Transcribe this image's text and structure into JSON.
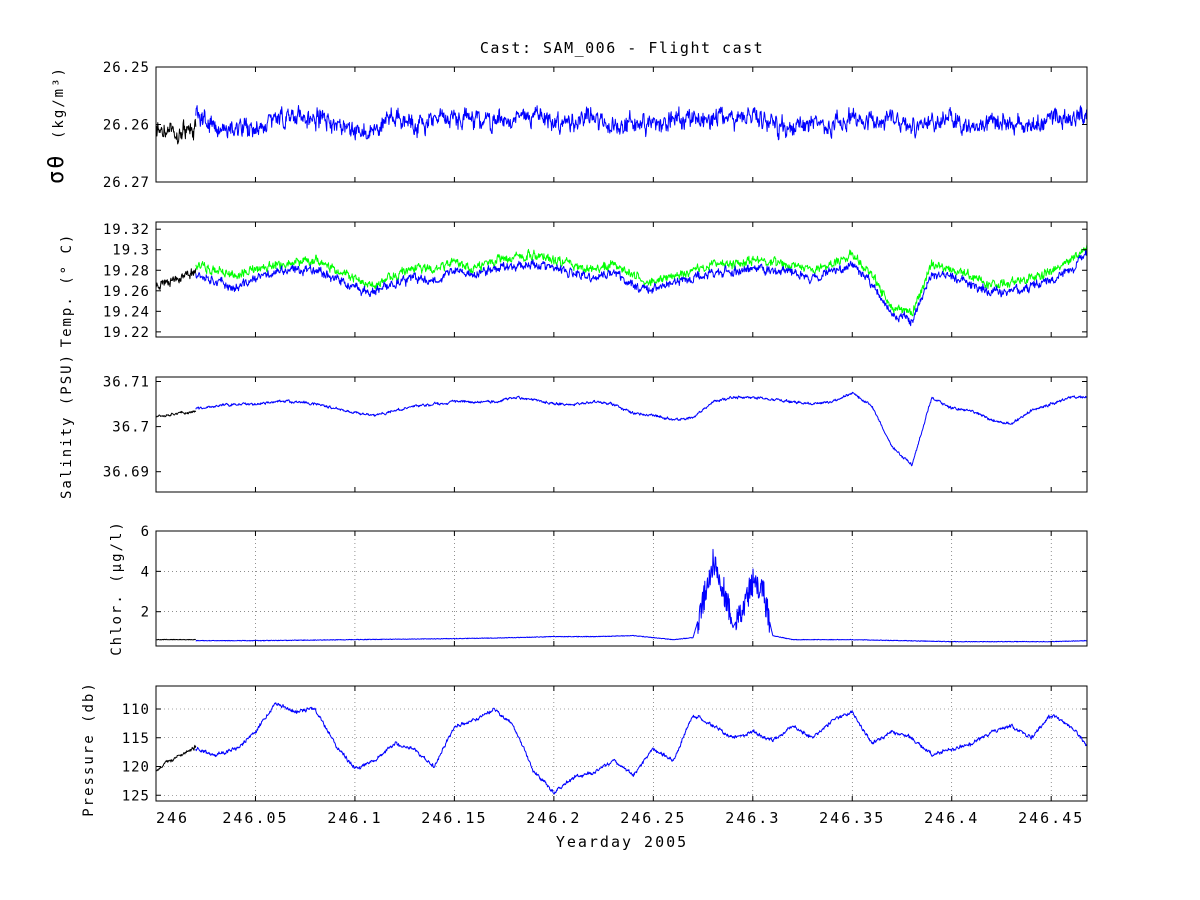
{
  "figure": {
    "title": "Cast: SAM_006 - Flight cast"
  },
  "colors": {
    "background": "#ffffff",
    "axes": "#000000",
    "main_series": "#0000ff",
    "initial_series": "#000000",
    "temp_secondary": "#00ff00"
  },
  "chart_data": [
    {
      "type": "line",
      "ylabel_main": "σθ",
      "ylabel_units": "(kg/m³)",
      "ylim": [
        26.27,
        26.25
      ],
      "y_reversed": true,
      "yticks": [
        26.25,
        26.26,
        26.27
      ],
      "ytick_labels": [
        "26.25",
        "26.26",
        "26.27"
      ],
      "grid": false,
      "series": [
        {
          "color": "#000000",
          "x": [
            246.0,
            246.005,
            246.01,
            246.015,
            246.02
          ],
          "y": [
            26.2615,
            26.2612,
            26.262,
            26.2608,
            26.2602
          ]
        },
        {
          "color": "#0000ff",
          "x": [
            246.02,
            246.03,
            246.04,
            246.05,
            246.06,
            246.07,
            246.08,
            246.09,
            246.1,
            246.11,
            246.12,
            246.13,
            246.14,
            246.15,
            246.16,
            246.17,
            246.18,
            246.19,
            246.2,
            246.21,
            246.22,
            246.23,
            246.24,
            246.25,
            246.26,
            246.27,
            246.28,
            246.29,
            246.3,
            246.31,
            246.32,
            246.33,
            246.34,
            246.35,
            246.36,
            246.37,
            246.38,
            246.39,
            246.4,
            246.41,
            246.42,
            246.43,
            246.44,
            246.45,
            246.46,
            246.468
          ],
          "y": [
            26.2585,
            26.2605,
            26.2612,
            26.2603,
            26.2592,
            26.2585,
            26.2588,
            26.2598,
            26.2612,
            26.2603,
            26.2586,
            26.2598,
            26.2592,
            26.2588,
            26.2594,
            26.26,
            26.2592,
            26.2578,
            26.2603,
            26.2594,
            26.2585,
            26.2604,
            26.2596,
            26.2604,
            26.2592,
            26.2596,
            26.2588,
            26.2592,
            26.2586,
            26.26,
            26.2608,
            26.2594,
            26.2603,
            26.2586,
            26.2594,
            26.2588,
            26.2605,
            26.2596,
            26.2592,
            26.2604,
            26.2598,
            26.2596,
            26.2608,
            26.2588,
            26.2592,
            26.2578
          ]
        }
      ]
    },
    {
      "type": "line",
      "ylabel": "Temp. (° C)",
      "ylim": [
        19.215,
        19.327
      ],
      "yticks": [
        19.22,
        19.24,
        19.26,
        19.28,
        19.3,
        19.32
      ],
      "ytick_labels": [
        "19.22",
        "19.24",
        "19.26",
        "19.28",
        "19.3",
        "19.32"
      ],
      "grid": false,
      "series": [
        {
          "color": "#000000",
          "x": [
            246.0,
            246.005,
            246.01,
            246.015,
            246.02
          ],
          "y": [
            19.265,
            19.27,
            19.272,
            19.275,
            19.28
          ]
        },
        {
          "color": "#00ff00",
          "x": [
            246.02,
            246.03,
            246.04,
            246.05,
            246.06,
            246.07,
            246.08,
            246.09,
            246.1,
            246.11,
            246.12,
            246.13,
            246.14,
            246.15,
            246.16,
            246.17,
            246.18,
            246.19,
            246.2,
            246.21,
            246.22,
            246.23,
            246.24,
            246.25,
            246.26,
            246.27,
            246.28,
            246.29,
            246.3,
            246.31,
            246.32,
            246.33,
            246.34,
            246.35,
            246.36,
            246.37,
            246.38,
            246.39,
            246.4,
            246.41,
            246.42,
            246.43,
            246.44,
            246.45,
            246.46,
            246.468
          ],
          "y": [
            19.285,
            19.28,
            19.275,
            19.282,
            19.285,
            19.288,
            19.29,
            19.28,
            19.272,
            19.265,
            19.275,
            19.282,
            19.28,
            19.288,
            19.282,
            19.29,
            19.292,
            19.295,
            19.29,
            19.285,
            19.28,
            19.285,
            19.275,
            19.268,
            19.275,
            19.28,
            19.285,
            19.285,
            19.29,
            19.288,
            19.285,
            19.28,
            19.288,
            19.295,
            19.275,
            19.245,
            19.238,
            19.285,
            19.282,
            19.275,
            19.265,
            19.268,
            19.272,
            19.278,
            19.29,
            19.302
          ]
        },
        {
          "color": "#0000ff",
          "x": [
            246.02,
            246.03,
            246.04,
            246.05,
            246.06,
            246.07,
            246.08,
            246.09,
            246.1,
            246.11,
            246.12,
            246.13,
            246.14,
            246.15,
            246.16,
            246.17,
            246.18,
            246.19,
            246.2,
            246.21,
            246.22,
            246.23,
            246.24,
            246.25,
            246.26,
            246.27,
            246.28,
            246.29,
            246.3,
            246.31,
            246.32,
            246.33,
            246.34,
            246.35,
            246.36,
            246.37,
            246.38,
            246.39,
            246.4,
            246.41,
            246.42,
            246.43,
            246.44,
            246.45,
            246.46,
            246.468
          ],
          "y": [
            19.278,
            19.27,
            19.262,
            19.272,
            19.278,
            19.28,
            19.282,
            19.272,
            19.262,
            19.258,
            19.268,
            19.272,
            19.27,
            19.28,
            19.275,
            19.282,
            19.285,
            19.286,
            19.282,
            19.276,
            19.272,
            19.278,
            19.265,
            19.262,
            19.268,
            19.272,
            19.278,
            19.278,
            19.282,
            19.28,
            19.278,
            19.272,
            19.28,
            19.286,
            19.268,
            19.235,
            19.232,
            19.276,
            19.274,
            19.266,
            19.258,
            19.26,
            19.265,
            19.27,
            19.282,
            19.296
          ]
        }
      ]
    },
    {
      "type": "line",
      "ylabel": "Salinity (PSU)",
      "ylim": [
        36.6855,
        36.711
      ],
      "yticks": [
        36.69,
        36.7,
        36.71
      ],
      "ytick_labels": [
        "36.69",
        "36.7",
        "36.71"
      ],
      "grid": false,
      "series": [
        {
          "color": "#000000",
          "x": [
            246.0,
            246.005,
            246.01,
            246.015,
            246.02
          ],
          "y": [
            36.7025,
            36.7025,
            36.703,
            36.703,
            36.7035
          ]
        },
        {
          "color": "#0000ff",
          "x": [
            246.02,
            246.03,
            246.04,
            246.05,
            246.06,
            246.07,
            246.08,
            246.09,
            246.1,
            246.11,
            246.12,
            246.13,
            246.14,
            246.15,
            246.16,
            246.17,
            246.18,
            246.19,
            246.2,
            246.21,
            246.22,
            246.23,
            246.24,
            246.25,
            246.26,
            246.27,
            246.28,
            246.29,
            246.3,
            246.31,
            246.32,
            246.33,
            246.34,
            246.35,
            246.36,
            246.37,
            246.38,
            246.39,
            246.4,
            246.41,
            246.42,
            246.43,
            246.44,
            246.45,
            246.46,
            246.468
          ],
          "y": [
            36.704,
            36.7045,
            36.705,
            36.705,
            36.7055,
            36.7055,
            36.705,
            36.704,
            36.703,
            36.7025,
            36.7035,
            36.7045,
            36.705,
            36.7055,
            36.7055,
            36.7055,
            36.7065,
            36.706,
            36.705,
            36.705,
            36.7055,
            36.705,
            36.703,
            36.7025,
            36.7015,
            36.702,
            36.7055,
            36.7065,
            36.7065,
            36.706,
            36.7055,
            36.705,
            36.7055,
            36.7075,
            36.7045,
            36.6955,
            36.6915,
            36.7065,
            36.704,
            36.7035,
            36.7015,
            36.7005,
            36.7035,
            36.705,
            36.7065,
            36.7065
          ]
        }
      ]
    },
    {
      "type": "line",
      "ylabel": "Chlor. (μg/l)",
      "ylim": [
        0.3,
        6
      ],
      "yticks": [
        2,
        4,
        6
      ],
      "ytick_labels": [
        "2",
        "4",
        "6"
      ],
      "grid": true,
      "series": [
        {
          "color": "#000000",
          "x": [
            246.0,
            246.005,
            246.01,
            246.015,
            246.02
          ],
          "y": [
            0.6,
            0.6,
            0.6,
            0.6,
            0.6
          ]
        },
        {
          "color": "#0000ff",
          "x": [
            246.02,
            246.05,
            246.1,
            246.15,
            246.18,
            246.2,
            246.22,
            246.24,
            246.26,
            246.27,
            246.275,
            246.28,
            246.285,
            246.29,
            246.295,
            246.3,
            246.305,
            246.31,
            246.32,
            246.35,
            246.4,
            246.45,
            246.468
          ],
          "y": [
            0.55,
            0.55,
            0.6,
            0.65,
            0.7,
            0.75,
            0.75,
            0.8,
            0.6,
            0.7,
            2.5,
            4.5,
            3.3,
            1.2,
            2.2,
            3.5,
            3.1,
            0.8,
            0.6,
            0.6,
            0.5,
            0.5,
            0.55
          ]
        }
      ]
    },
    {
      "type": "line",
      "ylabel": "Pressure (db)",
      "ylim": [
        126,
        106
      ],
      "y_reversed": true,
      "yticks": [
        110,
        115,
        120,
        125
      ],
      "ytick_labels": [
        "110",
        "115",
        "120",
        "125"
      ],
      "grid": true,
      "xlabel": "Yearday 2005",
      "xlim": [
        246,
        246.468
      ],
      "xticks": [
        246,
        246.05,
        246.1,
        246.15,
        246.2,
        246.25,
        246.3,
        246.35,
        246.4,
        246.45
      ],
      "xtick_labels": [
        "246",
        "246.05",
        "246.1",
        "246.15",
        "246.2",
        "246.25",
        "246.3",
        "246.35",
        "246.4",
        "246.45"
      ],
      "series": [
        {
          "color": "#000000",
          "x": [
            246.0,
            246.005,
            246.01,
            246.015,
            246.02
          ],
          "y": [
            121,
            119.5,
            118.5,
            117.5,
            116.5
          ]
        },
        {
          "color": "#0000ff",
          "x": [
            246.02,
            246.03,
            246.04,
            246.05,
            246.06,
            246.07,
            246.08,
            246.09,
            246.1,
            246.11,
            246.12,
            246.13,
            246.14,
            246.15,
            246.16,
            246.17,
            246.18,
            246.19,
            246.2,
            246.21,
            246.22,
            246.23,
            246.24,
            246.25,
            246.26,
            246.27,
            246.28,
            246.29,
            246.3,
            246.31,
            246.32,
            246.33,
            246.34,
            246.35,
            246.36,
            246.37,
            246.38,
            246.39,
            246.4,
            246.41,
            246.42,
            246.43,
            246.44,
            246.45,
            246.46,
            246.468
          ],
          "y": [
            117,
            118,
            117,
            114,
            109,
            110.5,
            110,
            116,
            120.5,
            119,
            116,
            117,
            120,
            113,
            112,
            110,
            113,
            121,
            124.5,
            122,
            121,
            119,
            121.5,
            117,
            119,
            111,
            113,
            115,
            114,
            115.5,
            113,
            115,
            112,
            110.5,
            116,
            114,
            115,
            118,
            117,
            116,
            114,
            113,
            115,
            111,
            113,
            116.5
          ]
        }
      ]
    }
  ]
}
